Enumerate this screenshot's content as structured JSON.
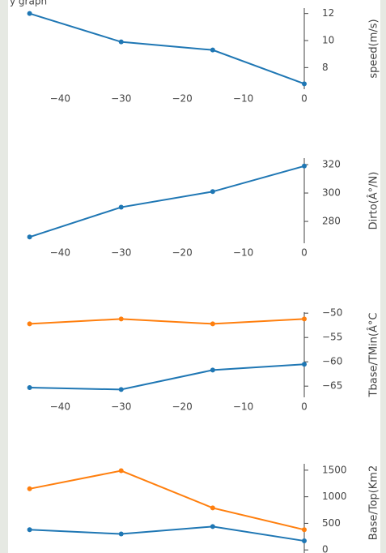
{
  "title": "y graph",
  "chart_data": [
    {
      "type": "line",
      "y_label": "speed(m/s)",
      "x": [
        -45,
        -30,
        -15,
        0
      ],
      "series": [
        {
          "color": "#1f77b4",
          "values": [
            12.0,
            9.9,
            9.3,
            6.8
          ]
        }
      ],
      "xlim": [
        -47.2,
        0
      ],
      "xticks": [
        {
          "value": -40,
          "label": "−40"
        },
        {
          "value": -30,
          "label": "−30"
        },
        {
          "value": -20,
          "label": "−20"
        },
        {
          "value": -10,
          "label": "−10"
        },
        0
      ],
      "ylim": [
        6.4,
        12.4
      ],
      "yticks": [
        8,
        10,
        12
      ]
    },
    {
      "type": "line",
      "y_label": "Dirto(Â°/N)",
      "x": [
        -45,
        -30,
        -15,
        0
      ],
      "series": [
        {
          "color": "#1f77b4",
          "values": [
            269,
            290,
            301,
            319
          ]
        }
      ],
      "xlim": [
        -47.2,
        0
      ],
      "xticks": [
        {
          "value": -40,
          "label": "−40"
        },
        {
          "value": -30,
          "label": "−30"
        },
        {
          "value": -20,
          "label": "−20"
        },
        {
          "value": -10,
          "label": "−10"
        },
        0
      ],
      "ylim": [
        264.6,
        324.6
      ],
      "yticks": [
        280,
        300,
        320
      ]
    },
    {
      "type": "line",
      "y_label": "Tbase/TMin(Â°C",
      "x": [
        -45,
        -30,
        -15,
        0
      ],
      "series": [
        {
          "color": "#ff7f0e",
          "values": [
            -52.2,
            -51.2,
            -52.2,
            -51.2
          ]
        },
        {
          "color": "#1f77b4",
          "values": [
            -65.3,
            -65.7,
            -61.7,
            -60.5
          ]
        }
      ],
      "xlim": [
        -47.2,
        0
      ],
      "xticks": [
        {
          "value": -40,
          "label": "−40"
        },
        {
          "value": -30,
          "label": "−30"
        },
        {
          "value": -20,
          "label": "−20"
        },
        {
          "value": -10,
          "label": "−10"
        },
        0
      ],
      "ylim": [
        -67.3,
        -49.8
      ],
      "yticks": [
        {
          "value": -65,
          "label": "−65"
        },
        {
          "value": -60,
          "label": "−60"
        },
        {
          "value": -55,
          "label": "−55"
        },
        {
          "value": -50,
          "label": "−50"
        }
      ]
    },
    {
      "type": "line",
      "y_label": "Base/Top(Km2",
      "x": [
        -45,
        -30,
        -15,
        0
      ],
      "series": [
        {
          "color": "#ff7f0e",
          "values": [
            1150,
            1490,
            790,
            380
          ]
        },
        {
          "color": "#1f77b4",
          "values": [
            380,
            300,
            440,
            170
          ]
        }
      ],
      "xlim": [
        -47.2,
        0
      ],
      "ylim": [
        -180,
        1620
      ],
      "yticks": [
        0,
        500,
        1000,
        1500
      ]
    }
  ]
}
